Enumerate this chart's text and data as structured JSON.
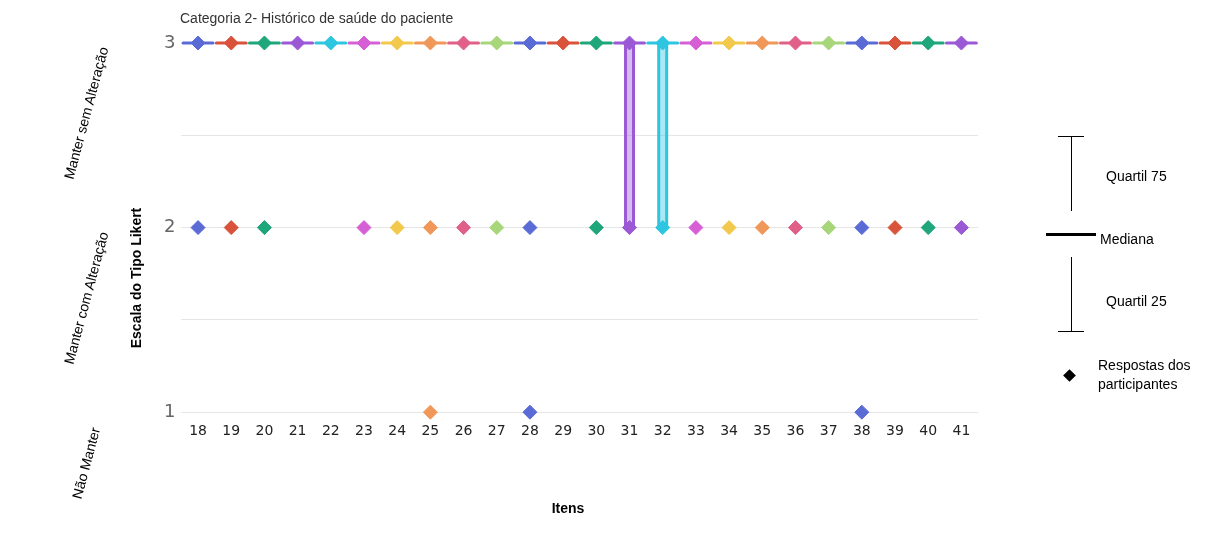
{
  "chart_data": {
    "type": "box",
    "title": "Categoria 2- Histórico de saúde do paciente",
    "xlabel": "Itens",
    "ylabel": "Escala do Tipo Likert",
    "categories": [
      "18",
      "19",
      "20",
      "21",
      "22",
      "23",
      "24",
      "25",
      "26",
      "27",
      "28",
      "29",
      "30",
      "31",
      "32",
      "33",
      "34",
      "35",
      "36",
      "37",
      "38",
      "39",
      "40",
      "41"
    ],
    "colors": [
      "#5b6bd6",
      "#d9533a",
      "#1fa67a",
      "#9b59d6",
      "#2ec5e0",
      "#d65fd6",
      "#f2c94c",
      "#f0985a",
      "#e0608a",
      "#a8d67a",
      "#5b6bd6",
      "#d9533a",
      "#1fa67a",
      "#9b59d6",
      "#2ec5e0",
      "#d65fd6",
      "#f2c94c",
      "#f0985a",
      "#e0608a",
      "#a8d67a",
      "#5b6bd6",
      "#d9533a",
      "#1fa67a",
      "#9b59d6"
    ],
    "boxes": [
      {
        "low": 3,
        "q1": 3,
        "median": 3,
        "q3": 3,
        "high": 3
      },
      {
        "low": 3,
        "q1": 3,
        "median": 3,
        "q3": 3,
        "high": 3
      },
      {
        "low": 3,
        "q1": 3,
        "median": 3,
        "q3": 3,
        "high": 3
      },
      {
        "low": 3,
        "q1": 3,
        "median": 3,
        "q3": 3,
        "high": 3
      },
      {
        "low": 3,
        "q1": 3,
        "median": 3,
        "q3": 3,
        "high": 3
      },
      {
        "low": 3,
        "q1": 3,
        "median": 3,
        "q3": 3,
        "high": 3
      },
      {
        "low": 3,
        "q1": 3,
        "median": 3,
        "q3": 3,
        "high": 3
      },
      {
        "low": 3,
        "q1": 3,
        "median": 3,
        "q3": 3,
        "high": 3
      },
      {
        "low": 3,
        "q1": 3,
        "median": 3,
        "q3": 3,
        "high": 3
      },
      {
        "low": 3,
        "q1": 3,
        "median": 3,
        "q3": 3,
        "high": 3
      },
      {
        "low": 3,
        "q1": 3,
        "median": 3,
        "q3": 3,
        "high": 3
      },
      {
        "low": 3,
        "q1": 3,
        "median": 3,
        "q3": 3,
        "high": 3
      },
      {
        "low": 3,
        "q1": 3,
        "median": 3,
        "q3": 3,
        "high": 3
      },
      {
        "low": 2,
        "q1": 2,
        "median": 3,
        "q3": 3,
        "high": 3
      },
      {
        "low": 2,
        "q1": 2,
        "median": 3,
        "q3": 3,
        "high": 3
      },
      {
        "low": 3,
        "q1": 3,
        "median": 3,
        "q3": 3,
        "high": 3
      },
      {
        "low": 3,
        "q1": 3,
        "median": 3,
        "q3": 3,
        "high": 3
      },
      {
        "low": 3,
        "q1": 3,
        "median": 3,
        "q3": 3,
        "high": 3
      },
      {
        "low": 3,
        "q1": 3,
        "median": 3,
        "q3": 3,
        "high": 3
      },
      {
        "low": 3,
        "q1": 3,
        "median": 3,
        "q3": 3,
        "high": 3
      },
      {
        "low": 3,
        "q1": 3,
        "median": 3,
        "q3": 3,
        "high": 3
      },
      {
        "low": 3,
        "q1": 3,
        "median": 3,
        "q3": 3,
        "high": 3
      },
      {
        "low": 3,
        "q1": 3,
        "median": 3,
        "q3": 3,
        "high": 3
      },
      {
        "low": 3,
        "q1": 3,
        "median": 3,
        "q3": 3,
        "high": 3
      }
    ],
    "series": [
      {
        "type": "scatter",
        "name": "Respostas dos participantes",
        "color": "#000000",
        "x": [
          "18",
          "19",
          "20",
          "21",
          "22",
          "23",
          "24",
          "25",
          "26",
          "27",
          "28",
          "29",
          "30",
          "31",
          "32",
          "33",
          "34",
          "35",
          "36",
          "37",
          "38",
          "39",
          "40",
          "41",
          "18",
          "19",
          "20",
          "23",
          "24",
          "25",
          "26",
          "27",
          "28",
          "30",
          "31",
          "32",
          "33",
          "34",
          "35",
          "36",
          "37",
          "38",
          "39",
          "40",
          "41",
          "25",
          "28",
          "38"
        ],
        "values": [
          3,
          3,
          3,
          3,
          3,
          3,
          3,
          3,
          3,
          3,
          3,
          3,
          3,
          3,
          3,
          3,
          3,
          3,
          3,
          3,
          3,
          3,
          3,
          3,
          2,
          2,
          2,
          2,
          2,
          2,
          2,
          2,
          2,
          2,
          2,
          2,
          2,
          2,
          2,
          2,
          2,
          2,
          2,
          2,
          2,
          1,
          1,
          1
        ],
        "colors": [
          "#5b6bd6",
          "#d9533a",
          "#1fa67a",
          "#9b59d6",
          "#2ec5e0",
          "#d65fd6",
          "#f2c94c",
          "#f0985a",
          "#e0608a",
          "#a8d67a",
          "#5b6bd6",
          "#d9533a",
          "#1fa67a",
          "#9b59d6",
          "#2ec5e0",
          "#d65fd6",
          "#f2c94c",
          "#f0985a",
          "#e0608a",
          "#a8d67a",
          "#5b6bd6",
          "#d9533a",
          "#1fa67a",
          "#9b59d6",
          "#5b6bd6",
          "#d9533a",
          "#1fa67a",
          "#d65fd6",
          "#f2c94c",
          "#f0985a",
          "#e0608a",
          "#a8d67a",
          "#5b6bd6",
          "#1fa67a",
          "#9b59d6",
          "#2ec5e0",
          "#d65fd6",
          "#f2c94c",
          "#f0985a",
          "#e0608a",
          "#a8d67a",
          "#5b6bd6",
          "#d9533a",
          "#1fa67a",
          "#9b59d6",
          "#f0985a",
          "#5b6bd6",
          "#5b6bd6"
        ]
      }
    ],
    "ylim": [
      1,
      3
    ],
    "yticks": [
      1,
      {
        "value": 1.5,
        "label": null
      },
      2,
      {
        "value": 2.5,
        "label": null
      },
      3
    ],
    "grid": "y",
    "marker": "diamond",
    "legend": "right",
    "annotations": [
      "Manter sem Alteração",
      "Manter com Alteração",
      "Não Manter",
      "Quartil 75",
      "Mediana",
      "Quartil 25"
    ]
  }
}
